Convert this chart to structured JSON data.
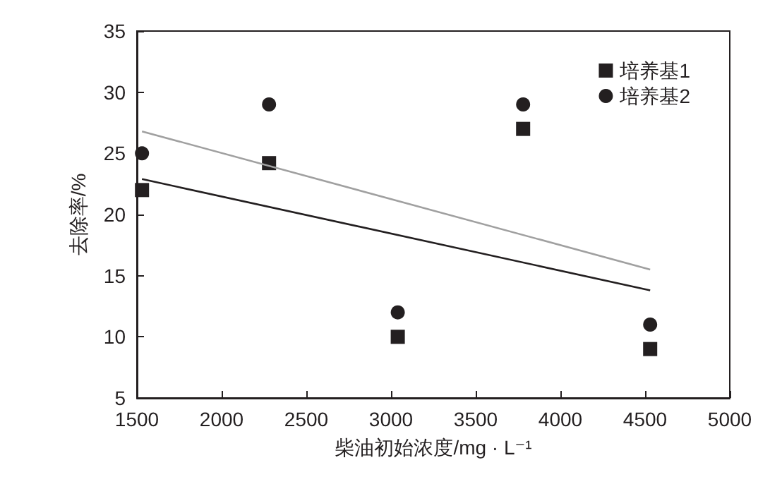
{
  "chart_data": {
    "type": "scatter",
    "xlabel": "柴油初始浓度/mg · L⁻¹",
    "ylabel": "去除率/%",
    "series": [
      {
        "name": "培养基1",
        "color": "#231f20",
        "marker": "square",
        "x": [
          1530,
          2280,
          3040,
          3780,
          4530
        ],
        "values": [
          22,
          24.2,
          10,
          27,
          9
        ]
      },
      {
        "name": "培养基2",
        "color": "#231f20",
        "marker": "circle",
        "x": [
          1530,
          2280,
          3040,
          3780,
          4530
        ],
        "values": [
          25,
          29,
          12,
          29,
          11
        ]
      },
      {
        "type": "line",
        "color": "#231f20",
        "x": [
          1530,
          4530
        ],
        "values": [
          22.9,
          13.8
        ]
      },
      {
        "type": "line",
        "color": "#a0a0a0",
        "x": [
          1530,
          4530
        ],
        "values": [
          26.8,
          15.5
        ]
      }
    ],
    "xlim": [
      1500,
      5000
    ],
    "xticks": [
      1500,
      2000,
      2500,
      3000,
      3500,
      4000,
      4500,
      5000
    ],
    "ylim": [
      5,
      35
    ],
    "yticks": [
      5,
      10,
      15,
      20,
      25,
      30,
      35
    ],
    "grid": false,
    "legend": "top right"
  }
}
